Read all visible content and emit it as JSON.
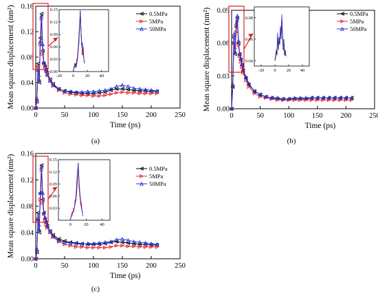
{
  "panels": [
    {
      "label": "(a)"
    },
    {
      "label": "(b)"
    },
    {
      "label": "(c)"
    }
  ],
  "colors": {
    "0.5MPa": "#000000",
    "5MPa": "#e8262a",
    "50MPa": "#2233dd",
    "highlight": "#d61f26"
  },
  "chart_data": [
    {
      "type": "line",
      "panel": "(a)",
      "xlabel": "Time (ps)",
      "ylabel": "Mean square displacement (nm²)",
      "xlim": [
        0,
        250
      ],
      "ylim": [
        0,
        0.16
      ],
      "xticks": [
        "0",
        "50",
        "100",
        "150",
        "200",
        "250"
      ],
      "yticks": [
        "0.00",
        "0.04",
        "0.08",
        "0.12",
        "0.16"
      ],
      "x": [
        0,
        2,
        4,
        6,
        8,
        10,
        12,
        14,
        16,
        18,
        20,
        25,
        30,
        40,
        50,
        60,
        70,
        80,
        90,
        100,
        110,
        120,
        130,
        140,
        150,
        160,
        170,
        180,
        190,
        200,
        210
      ],
      "series": [
        {
          "name": "0.5MPa",
          "marker": "left-triangle",
          "values": [
            0,
            0.01,
            0.07,
            0.04,
            0.11,
            0.148,
            0.09,
            0.07,
            0.065,
            0.06,
            0.055,
            0.045,
            0.038,
            0.03,
            0.027,
            0.025,
            0.024,
            0.023,
            0.023,
            0.023,
            0.024,
            0.025,
            0.028,
            0.03,
            0.03,
            0.029,
            0.028,
            0.027,
            0.027,
            0.026,
            0.026
          ]
        },
        {
          "name": "5MPa",
          "marker": "right-triangle",
          "values": [
            0,
            0.012,
            0.065,
            0.05,
            0.1,
            0.14,
            0.085,
            0.07,
            0.063,
            0.058,
            0.053,
            0.043,
            0.035,
            0.028,
            0.024,
            0.022,
            0.021,
            0.02,
            0.02,
            0.019,
            0.019,
            0.02,
            0.022,
            0.024,
            0.025,
            0.024,
            0.024,
            0.023,
            0.023,
            0.023,
            0.023
          ]
        },
        {
          "name": "50MPa",
          "marker": "up-triangle",
          "values": [
            0,
            0.015,
            0.06,
            0.045,
            0.105,
            0.145,
            0.1,
            0.072,
            0.068,
            0.06,
            0.052,
            0.043,
            0.036,
            0.03,
            0.027,
            0.026,
            0.025,
            0.025,
            0.026,
            0.026,
            0.027,
            0.028,
            0.03,
            0.034,
            0.036,
            0.034,
            0.031,
            0.03,
            0.029,
            0.028,
            0.027
          ]
        }
      ],
      "inset": {
        "xlim": [
          -20,
          50
        ],
        "ylim": [
          0,
          0.15
        ],
        "xticks": [
          "-20",
          "0",
          "20",
          "40"
        ],
        "yticks": [
          "0.00",
          "0.03",
          "0.06",
          "0.09",
          "0.12",
          "0.15"
        ],
        "x": [
          0,
          1,
          2,
          3,
          4,
          5,
          6,
          7,
          8,
          9,
          10,
          11,
          12,
          13,
          14,
          15,
          16
        ],
        "series": [
          {
            "name": "0.5MPa",
            "values": [
              0,
              0.01,
              0.01,
              0.02,
              0.01,
              0.02,
              0.03,
              0.05,
              0.07,
              0.11,
              0.148,
              0.1,
              0.07,
              0.04,
              0.06,
              0.03,
              0.02
            ]
          },
          {
            "name": "5MPa",
            "values": [
              0,
              0.01,
              0.02,
              0.01,
              0.02,
              0.02,
              0.04,
              0.06,
              0.08,
              0.1,
              0.14,
              0.09,
              0.06,
              0.05,
              0.04,
              0.03,
              0.02
            ]
          },
          {
            "name": "50MPa",
            "values": [
              0,
              0.01,
              0.01,
              0.02,
              0.01,
              0.03,
              0.03,
              0.05,
              0.09,
              0.12,
              0.145,
              0.1,
              0.06,
              0.07,
              0.05,
              0.03,
              0.02
            ]
          }
        ]
      }
    },
    {
      "type": "line",
      "panel": "(b)",
      "xlabel": "Time (ps)",
      "ylabel": "Mean square displacement (nm²)",
      "xlim": [
        0,
        250
      ],
      "ylim": [
        0,
        0.09
      ],
      "xticks": [
        "0",
        "50",
        "100",
        "150",
        "200",
        "250"
      ],
      "yticks": [
        "0.00",
        "0.03",
        "0.06",
        "0.09"
      ],
      "x": [
        0,
        2,
        4,
        6,
        8,
        10,
        12,
        14,
        16,
        18,
        20,
        25,
        30,
        40,
        50,
        60,
        70,
        80,
        90,
        100,
        110,
        120,
        130,
        140,
        150,
        160,
        170,
        180,
        190,
        200,
        210
      ],
      "series": [
        {
          "name": "0.5MPa",
          "marker": "left-triangle",
          "values": [
            0,
            0.02,
            0.065,
            0.05,
            0.075,
            0.083,
            0.06,
            0.05,
            0.045,
            0.04,
            0.035,
            0.028,
            0.022,
            0.016,
            0.013,
            0.011,
            0.01,
            0.009,
            0.009,
            0.009,
            0.009,
            0.009,
            0.009,
            0.01,
            0.01,
            0.01,
            0.01,
            0.01,
            0.01,
            0.01,
            0.01
          ]
        },
        {
          "name": "5MPa",
          "marker": "right-triangle",
          "values": [
            0,
            0.02,
            0.06,
            0.055,
            0.07,
            0.08,
            0.058,
            0.048,
            0.043,
            0.038,
            0.033,
            0.026,
            0.02,
            0.014,
            0.011,
            0.01,
            0.009,
            0.008,
            0.008,
            0.008,
            0.008,
            0.008,
            0.008,
            0.008,
            0.008,
            0.008,
            0.008,
            0.008,
            0.008,
            0.008,
            0.008
          ]
        },
        {
          "name": "50MPa",
          "marker": "up-triangle",
          "values": [
            0,
            0.022,
            0.068,
            0.052,
            0.078,
            0.085,
            0.062,
            0.05,
            0.046,
            0.041,
            0.036,
            0.029,
            0.023,
            0.016,
            0.013,
            0.011,
            0.01,
            0.01,
            0.009,
            0.009,
            0.01,
            0.01,
            0.01,
            0.01,
            0.01,
            0.01,
            0.01,
            0.01,
            0.01,
            0.01,
            0.01
          ]
        }
      ],
      "inset": {
        "xlim": [
          -30,
          50
        ],
        "ylim": [
          0.035,
          0.09
        ],
        "xticks": [
          "-20",
          "0",
          "20",
          "40"
        ],
        "yticks": [
          "0.04",
          "0.06",
          "0.08"
        ],
        "x": [
          0,
          1,
          2,
          3,
          4,
          5,
          6,
          7,
          8,
          9,
          10,
          11,
          12,
          13,
          14,
          15,
          16
        ],
        "series": [
          {
            "name": "0.5MPa",
            "values": [
              0.04,
              0.045,
              0.05,
              0.045,
              0.065,
              0.05,
              0.06,
              0.055,
              0.07,
              0.06,
              0.08,
              0.065,
              0.05,
              0.06,
              0.045,
              0.05,
              0.045
            ]
          },
          {
            "name": "5MPa",
            "values": [
              0.04,
              0.045,
              0.048,
              0.05,
              0.06,
              0.055,
              0.058,
              0.06,
              0.065,
              0.07,
              0.078,
              0.06,
              0.055,
              0.05,
              0.05,
              0.045,
              0.045
            ]
          },
          {
            "name": "50MPa",
            "values": [
              0.04,
              0.042,
              0.05,
              0.048,
              0.066,
              0.052,
              0.062,
              0.058,
              0.072,
              0.062,
              0.083,
              0.068,
              0.052,
              0.058,
              0.048,
              0.05,
              0.044
            ]
          }
        ]
      }
    },
    {
      "type": "line",
      "panel": "(c)",
      "xlabel": "Time (ps)",
      "ylabel": "Mean square displacement (nm²)",
      "xlim": [
        0,
        250
      ],
      "ylim": [
        0,
        0.16
      ],
      "xticks": [
        "0",
        "50",
        "100",
        "150",
        "200",
        "250"
      ],
      "yticks": [
        "0.00",
        "0.04",
        "0.08",
        "0.12",
        "0.16"
      ],
      "x": [
        0,
        2,
        4,
        6,
        8,
        10,
        12,
        14,
        16,
        18,
        20,
        25,
        30,
        40,
        50,
        60,
        70,
        80,
        90,
        100,
        110,
        120,
        130,
        140,
        150,
        160,
        170,
        180,
        190,
        200,
        210
      ],
      "series": [
        {
          "name": "0.5MPa",
          "marker": "left-triangle",
          "values": [
            0,
            0.01,
            0.07,
            0.04,
            0.1,
            0.142,
            0.09,
            0.07,
            0.06,
            0.055,
            0.05,
            0.042,
            0.036,
            0.03,
            0.027,
            0.025,
            0.024,
            0.023,
            0.022,
            0.022,
            0.022,
            0.023,
            0.025,
            0.026,
            0.025,
            0.024,
            0.023,
            0.022,
            0.022,
            0.021,
            0.021
          ]
        },
        {
          "name": "5MPa",
          "marker": "right-triangle",
          "values": [
            0,
            0.012,
            0.06,
            0.05,
            0.09,
            0.135,
            0.085,
            0.068,
            0.058,
            0.052,
            0.047,
            0.04,
            0.033,
            0.026,
            0.022,
            0.02,
            0.018,
            0.018,
            0.017,
            0.017,
            0.017,
            0.017,
            0.018,
            0.02,
            0.02,
            0.019,
            0.019,
            0.018,
            0.018,
            0.018,
            0.018
          ]
        },
        {
          "name": "50MPa",
          "marker": "up-triangle",
          "values": [
            0,
            0.015,
            0.06,
            0.045,
            0.1,
            0.14,
            0.1,
            0.07,
            0.063,
            0.056,
            0.05,
            0.041,
            0.034,
            0.028,
            0.025,
            0.024,
            0.023,
            0.022,
            0.023,
            0.023,
            0.024,
            0.025,
            0.026,
            0.029,
            0.03,
            0.028,
            0.026,
            0.025,
            0.024,
            0.023,
            0.022
          ]
        }
      ],
      "inset": {
        "xlim": [
          -15,
          50
        ],
        "ylim": [
          0.0,
          0.15
        ],
        "xticks": [
          "0",
          "20",
          "40"
        ],
        "yticks": [
          "0.03",
          "0.06",
          "0.09",
          "0.12",
          "0.15"
        ],
        "x": [
          0,
          1,
          2,
          3,
          4,
          5,
          6,
          7,
          8,
          9,
          10,
          11,
          12,
          13,
          14,
          15,
          16
        ],
        "series": [
          {
            "name": "0.5MPa",
            "values": [
              0.0,
              0.01,
              0.01,
              0.02,
              0.02,
              0.03,
              0.04,
              0.05,
              0.07,
              0.1,
              0.142,
              0.09,
              0.06,
              0.05,
              0.03,
              0.02,
              0.02
            ]
          },
          {
            "name": "5MPa",
            "values": [
              0.0,
              0.01,
              0.02,
              0.02,
              0.03,
              0.03,
              0.04,
              0.06,
              0.08,
              0.11,
              0.135,
              0.08,
              0.06,
              0.04,
              0.03,
              0.02,
              0.02
            ]
          },
          {
            "name": "50MPa",
            "values": [
              0.0,
              0.01,
              0.01,
              0.02,
              0.02,
              0.03,
              0.05,
              0.05,
              0.09,
              0.12,
              0.14,
              0.1,
              0.07,
              0.05,
              0.04,
              0.02,
              0.01
            ]
          }
        ]
      }
    }
  ]
}
